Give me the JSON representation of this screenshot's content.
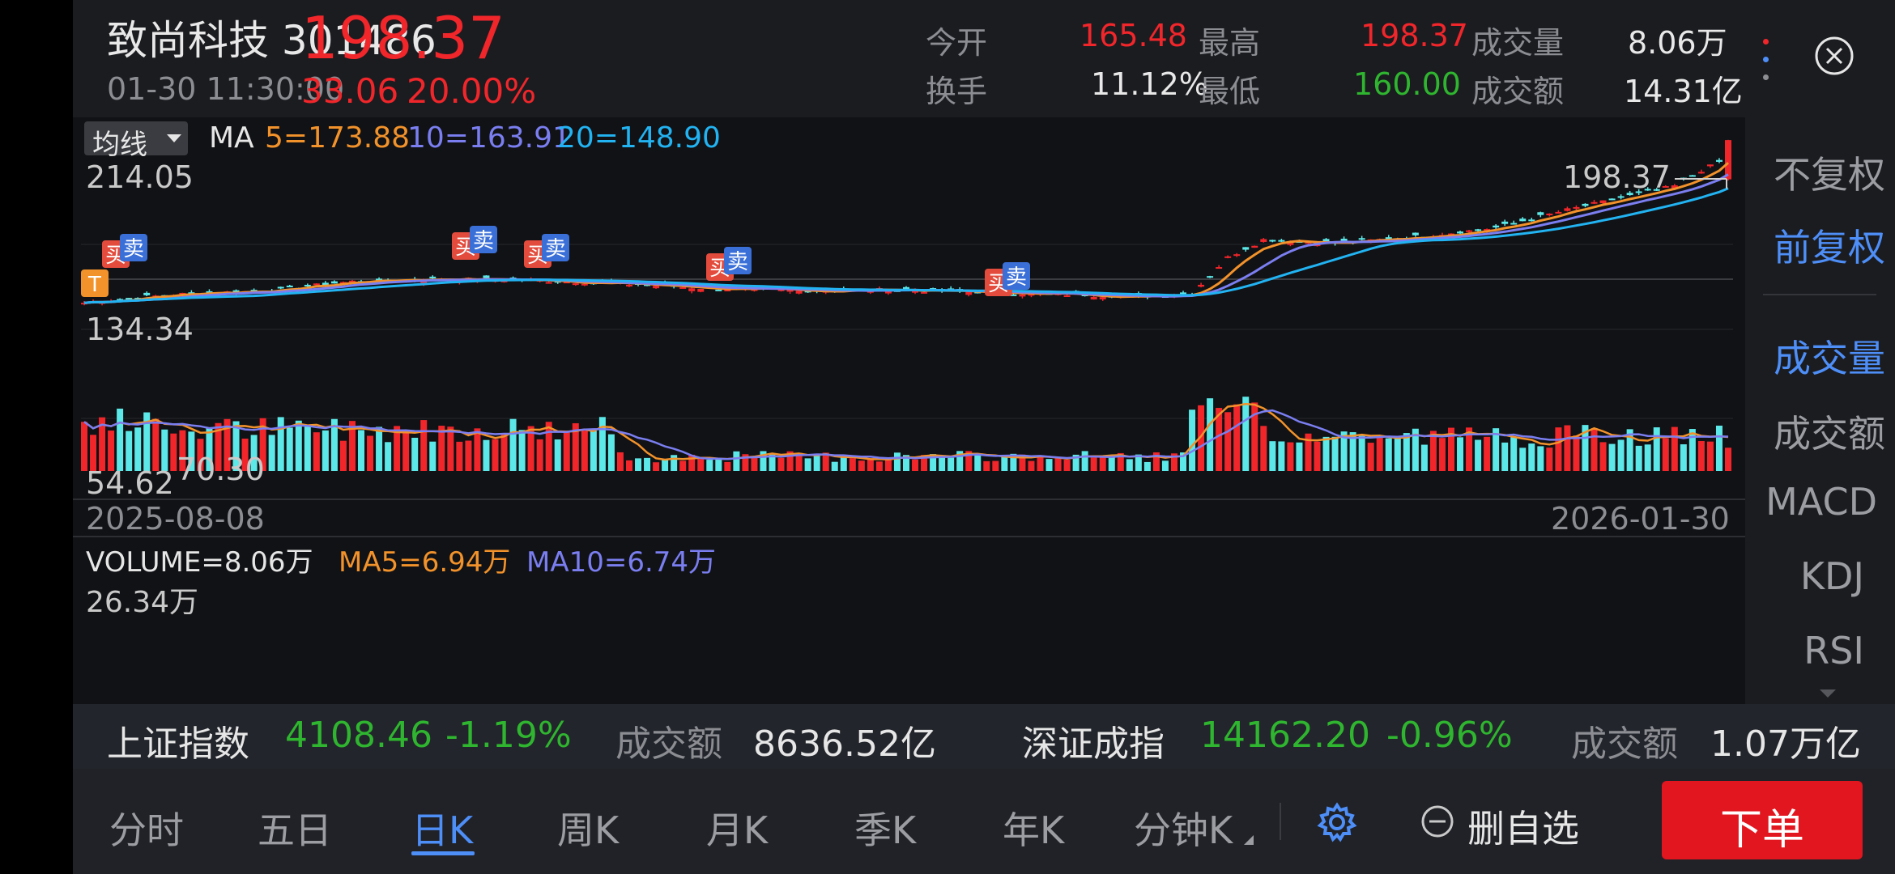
{
  "stock": {
    "name_code": "致尚科技 301486",
    "price": "198.37",
    "change": "33.06",
    "change_pct": "20.00%",
    "datetime": "01-30 11:30:00"
  },
  "quote": {
    "open_label": "今开",
    "open": "165.48",
    "high_label": "最高",
    "high": "198.37",
    "volume_label": "成交量",
    "volume": "8.06万",
    "turnover_label": "换手",
    "turnover": "11.12%",
    "low_label": "最低",
    "low": "160.00",
    "amount_label": "成交额",
    "amount": "14.31亿"
  },
  "ma_bar": {
    "selector": "均线",
    "prefix": "MA",
    "ma5": "5=173.88",
    "ma10": "10=163.91",
    "ma20": "20=148.90"
  },
  "price_axis": {
    "top": "214.05",
    "mid": "134.34",
    "bottom": "54.62",
    "low_marker": "70.30",
    "high_marker": "198.37",
    "start_date": "2025-08-08",
    "end_date": "2026-01-30"
  },
  "volume_bar": {
    "volume": "VOLUME=8.06万",
    "ma5": "MA5=6.94万",
    "ma10": "MA10=6.74万",
    "max": "26.34万"
  },
  "signals": {
    "buy": "买",
    "sell": "卖",
    "t": "T"
  },
  "right_panel": {
    "fq1": "不复权",
    "fq2": "前复权",
    "ind1": "成交量",
    "ind2": "成交额",
    "ind3": "MACD",
    "ind4": "KDJ",
    "ind5": "RSI"
  },
  "index_bar": {
    "sh_name": "上证指数",
    "sh_value": "4108.46",
    "sh_change": "-1.19%",
    "sh_amount_label": "成交额",
    "sh_amount": "8636.52亿",
    "sz_name": "深证成指",
    "sz_value": "14162.20",
    "sz_change": "-0.96%",
    "sz_amount_label": "成交额",
    "sz_amount": "1.07万亿"
  },
  "tabs": [
    "分时",
    "五日",
    "日K",
    "周K",
    "月K",
    "季K",
    "年K",
    "分钟K"
  ],
  "actions": {
    "remove_fav": "删自选",
    "order": "下单"
  },
  "colors": {
    "up": "#f0262b",
    "down": "#5ce8e8",
    "ma5": "#f2922b",
    "ma10": "#7a7ef0",
    "ma20": "#22b3f2",
    "accent": "#4e8ef7"
  }
}
